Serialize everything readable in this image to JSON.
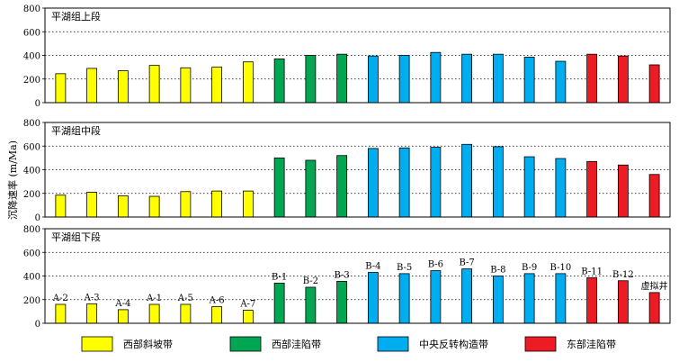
{
  "chart_data": {
    "type": "bar",
    "ylabel": "沉降速率 (m/Ma)",
    "ylim": [
      0,
      800
    ],
    "yticks": [
      0,
      200,
      400,
      600,
      800
    ],
    "grid": "dashed-horizontal",
    "groups": [
      {
        "name": "西部斜坡带",
        "color": "#ffff00"
      },
      {
        "name": "西部洼陷带",
        "color": "#00a651"
      },
      {
        "name": "中央反转构造带",
        "color": "#00aeef"
      },
      {
        "name": "东部洼陷带",
        "color": "#ed1c24"
      }
    ],
    "bar_groups": [
      0,
      0,
      0,
      0,
      0,
      0,
      0,
      1,
      1,
      1,
      2,
      2,
      2,
      2,
      2,
      2,
      2,
      3,
      3,
      3
    ],
    "categories": [
      "A-2",
      "A-3",
      "A-4",
      "A-1",
      "A-5",
      "A-6",
      "A-7",
      "B-1",
      "B-2",
      "B-3",
      "B-4",
      "B-5",
      "B-6",
      "B-7",
      "B-8",
      "B-9",
      "B-10",
      "B-11",
      "B-12",
      "虚拟井"
    ],
    "panels": [
      {
        "title": "平湖组上段",
        "values": [
          245,
          290,
          270,
          315,
          295,
          300,
          345,
          370,
          400,
          410,
          395,
          400,
          425,
          410,
          410,
          385,
          350,
          410,
          395,
          320
        ]
      },
      {
        "title": "平湖组中段",
        "values": [
          185,
          210,
          180,
          175,
          215,
          220,
          220,
          500,
          480,
          520,
          580,
          585,
          590,
          615,
          595,
          510,
          495,
          470,
          440,
          360
        ]
      },
      {
        "title": "平湖组下段",
        "values": [
          160,
          165,
          115,
          160,
          160,
          140,
          110,
          340,
          305,
          355,
          430,
          420,
          445,
          460,
          400,
          420,
          420,
          385,
          360,
          260
        ]
      }
    ]
  }
}
